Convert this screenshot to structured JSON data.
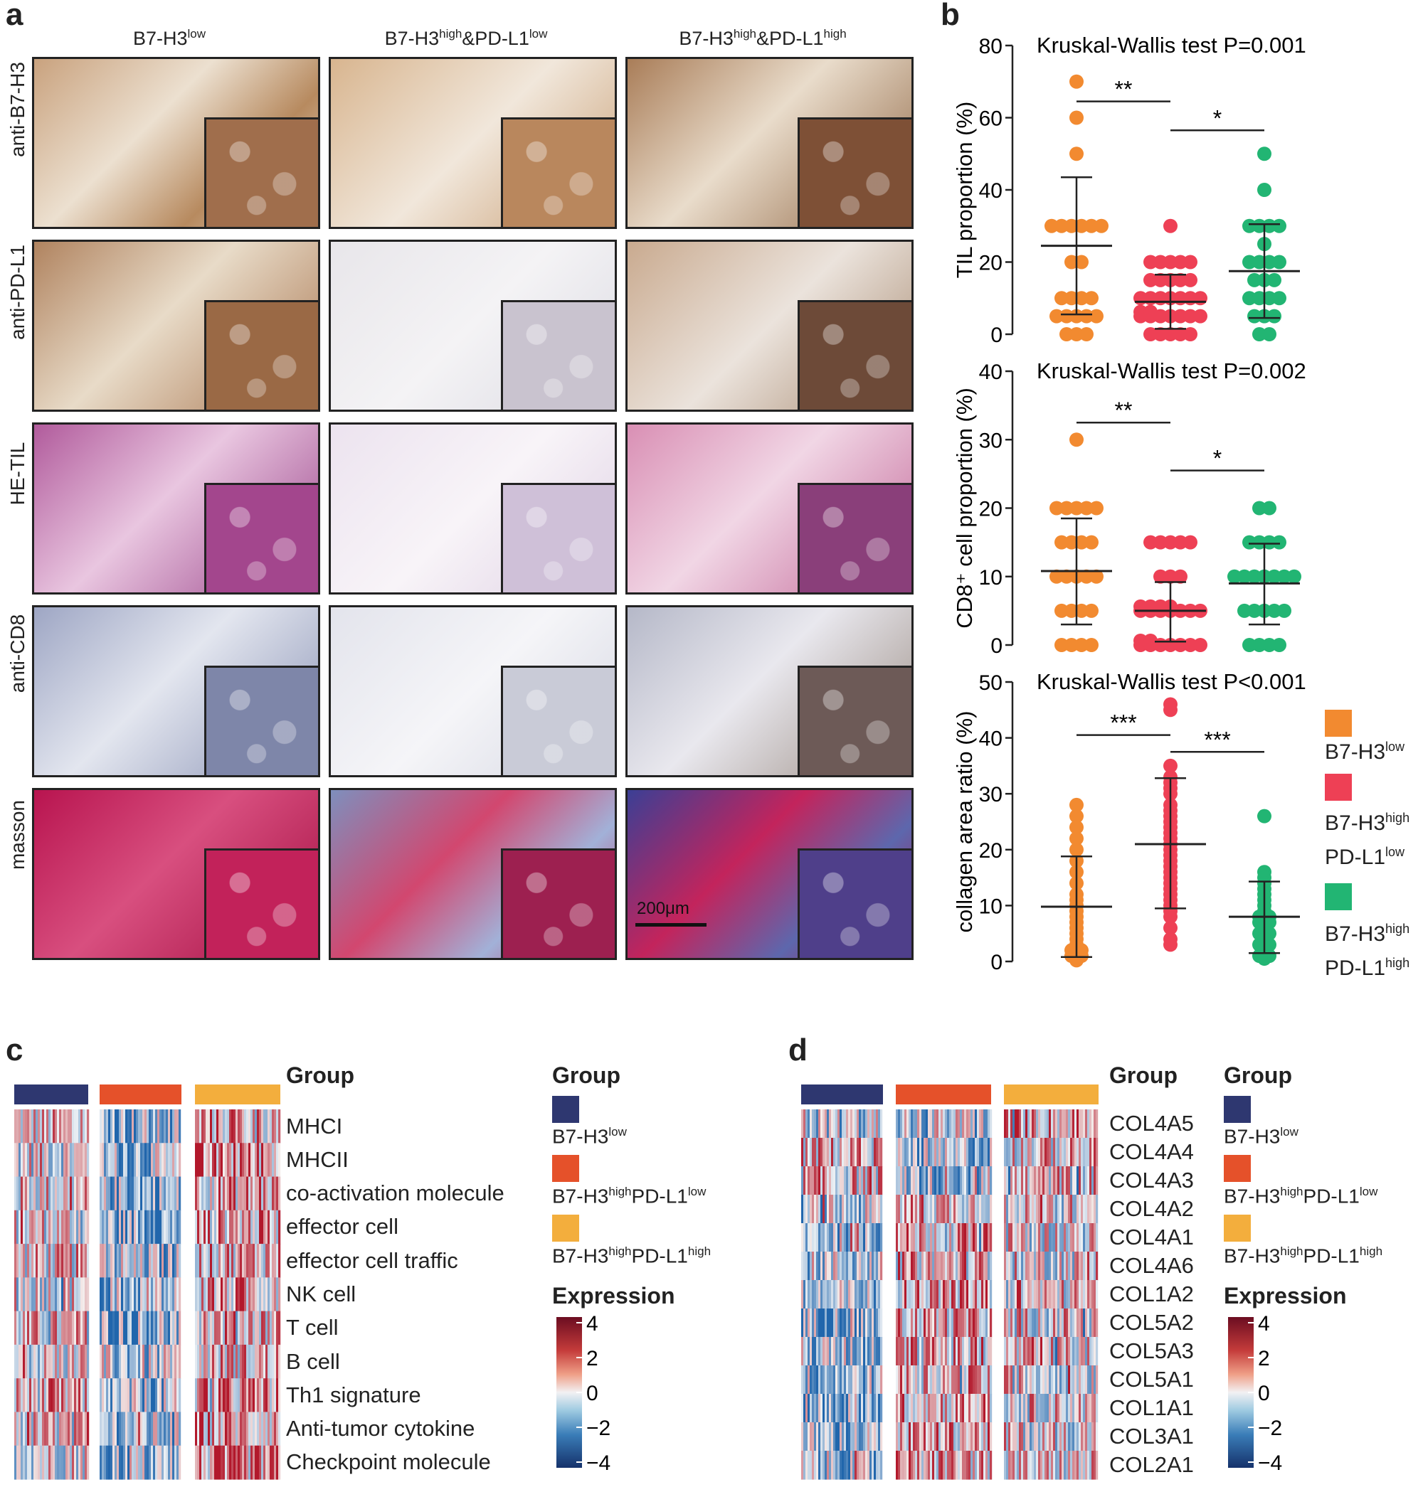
{
  "panel_a": {
    "label": "a",
    "columns": [
      "B7-H3",
      "B7-H3",
      "B7-H3"
    ],
    "column_sups": [
      "low",
      "high",
      "high"
    ],
    "column_rest": [
      "",
      "&PD-L1",
      "&PD-L1"
    ],
    "column_sups2": [
      "",
      "low",
      "high"
    ],
    "rows": [
      "anti-B7-H3",
      "anti-PD-L1",
      "HE-TIL",
      "anti-CD8",
      "masson"
    ],
    "scale_bar": "200μm"
  },
  "panel_b": {
    "label": "b"
  },
  "panel_c": {
    "label": "c"
  },
  "panel_d": {
    "label": "d"
  },
  "colors": {
    "orange": "#F28A30",
    "red": "#EE4055",
    "green": "#22B573",
    "navy": "#2E3770",
    "hm_red": "#E5512A",
    "hm_yellow": "#F3AE3D"
  },
  "legend_b": {
    "items": [
      {
        "main": "B7-H3",
        "sup": "low",
        "line2": "",
        "sup2": ""
      },
      {
        "main": "B7-H3",
        "sup": "high",
        "line2": "PD-L1",
        "sup2": "low"
      },
      {
        "main": "B7-H3",
        "sup": "high",
        "line2": "PD-L1",
        "sup2": "high"
      }
    ]
  },
  "chart_data": [
    {
      "type": "scatter",
      "title": "Kruskal-Wallis test P=0.001",
      "ylabel": "TIL proportion (%)",
      "ylim": [
        0,
        80
      ],
      "yticks": [
        0,
        20,
        40,
        60,
        80
      ],
      "groups": [
        "B7-H3low",
        "B7-H3highPD-L1low",
        "B7-H3highPD-L1high"
      ],
      "series": [
        {
          "values": [
            70,
            60,
            50,
            30,
            30,
            30,
            30,
            30,
            30,
            20,
            20,
            10,
            10,
            10,
            10,
            5,
            5,
            5,
            5,
            5,
            0,
            0,
            0
          ],
          "mean": 24.5,
          "sd_low": 5.5,
          "sd_high": 43.5
        },
        {
          "values": [
            30,
            20,
            20,
            20,
            20,
            20,
            15,
            15,
            15,
            15,
            15,
            10,
            10,
            10,
            10,
            10,
            10,
            10,
            5,
            5,
            5,
            5,
            5,
            5,
            5,
            5,
            5,
            0,
            0,
            0,
            0,
            0
          ],
          "mean": 9,
          "sd_low": 1.5,
          "sd_high": 16.5
        },
        {
          "values": [
            50,
            40,
            30,
            30,
            30,
            30,
            25,
            20,
            20,
            20,
            20,
            15,
            15,
            15,
            10,
            10,
            10,
            10,
            5,
            5,
            5,
            0,
            0
          ],
          "mean": 17.5,
          "sd_low": 4.5,
          "sd_high": 30.5
        }
      ],
      "significance": [
        {
          "pair": [
            0,
            1
          ],
          "label": "**",
          "y": 64.5
        },
        {
          "pair": [
            1,
            2
          ],
          "label": "*",
          "y": 56.5
        }
      ]
    },
    {
      "type": "scatter",
      "title": "Kruskal-Wallis test P=0.002",
      "ylabel": "CD8⁺ cell proportion (%)",
      "ylim": [
        0,
        40
      ],
      "yticks": [
        0,
        10,
        20,
        30,
        40
      ],
      "groups": [
        "B7-H3low",
        "B7-H3highPD-L1low",
        "B7-H3highPD-L1high"
      ],
      "series": [
        {
          "values": [
            30,
            20,
            20,
            20,
            20,
            20,
            15,
            15,
            15,
            15,
            10,
            10,
            10,
            10,
            10,
            5,
            5,
            5,
            5,
            0,
            0,
            0,
            0
          ],
          "mean": 10.8,
          "sd_low": 3,
          "sd_high": 18.5
        },
        {
          "values": [
            15,
            15,
            15,
            15,
            15,
            10,
            10,
            10,
            5,
            5,
            5,
            5,
            5,
            5,
            5,
            5,
            5,
            5,
            5,
            0,
            0,
            0,
            0,
            0,
            0,
            0,
            0,
            0
          ],
          "mean": 5,
          "sd_low": 0.5,
          "sd_high": 9.2
        },
        {
          "values": [
            20,
            20,
            15,
            15,
            15,
            15,
            10,
            10,
            10,
            10,
            10,
            10,
            10,
            5,
            5,
            5,
            5,
            5,
            0,
            0,
            0,
            0
          ],
          "mean": 9,
          "sd_low": 3,
          "sd_high": 14.8
        }
      ],
      "significance": [
        {
          "pair": [
            0,
            1
          ],
          "label": "**",
          "y": 32.5
        },
        {
          "pair": [
            1,
            2
          ],
          "label": "*",
          "y": 25.5
        }
      ]
    },
    {
      "type": "scatter",
      "title": "Kruskal-Wallis test P<0.001",
      "ylabel": "collagen area ratio (%)",
      "ylim": [
        0,
        50
      ],
      "yticks": [
        0,
        10,
        20,
        30,
        40,
        50
      ],
      "groups": [
        "B7-H3low",
        "B7-H3highPD-L1low",
        "B7-H3highPD-L1high"
      ],
      "series": [
        {
          "values": [
            28,
            26,
            24,
            22,
            20,
            18,
            16,
            14,
            12,
            11,
            10,
            9,
            8,
            7,
            6,
            5,
            4,
            3,
            2,
            2,
            1,
            1,
            0.5,
            0.3,
            0.2
          ],
          "mean": 9.8,
          "sd_low": 0.8,
          "sd_high": 18.8
        },
        {
          "values": [
            46,
            45,
            35,
            33,
            32,
            31,
            30,
            28,
            27,
            26,
            25,
            24,
            23,
            22,
            21,
            20,
            19,
            18,
            17,
            16,
            15,
            14,
            13,
            12,
            11,
            10,
            9,
            8,
            6,
            4,
            3
          ],
          "mean": 21,
          "sd_low": 9.5,
          "sd_high": 32.8
        },
        {
          "values": [
            26,
            16,
            15,
            14,
            13,
            12,
            11,
            10,
            9,
            8,
            8,
            7,
            7,
            6,
            5,
            5,
            4,
            3,
            3,
            2,
            1,
            1,
            0.5
          ],
          "mean": 8,
          "sd_low": 1.5,
          "sd_high": 14.3
        }
      ],
      "significance": [
        {
          "pair": [
            0,
            1
          ],
          "label": "***",
          "y": 40.5
        },
        {
          "pair": [
            1,
            2
          ],
          "label": "***",
          "y": 37.5
        }
      ]
    },
    {
      "type": "heatmap",
      "rows": [
        "MHCI",
        "MHCII",
        "co-activation molecule",
        "effector cell",
        "effector cell traffic",
        "NK cell",
        "T cell",
        "B cell",
        "Th1 signature",
        "Anti-tumor cytokine",
        "Checkpoint molecule"
      ],
      "group_label": "Group",
      "legend_title": "Group",
      "legend": [
        {
          "main": "B7-H3",
          "sup": "low",
          "mid": "",
          "sup2": ""
        },
        {
          "main": "B7-H3",
          "sup": "high",
          "mid": "PD-L1",
          "sup2": "low"
        },
        {
          "main": "B7-H3",
          "sup": "high",
          "mid": "PD-L1",
          "sup2": "high"
        }
      ],
      "expression_title": "Expression",
      "scale": [
        "4",
        "2",
        "0",
        "−2",
        "−4"
      ]
    },
    {
      "type": "heatmap",
      "rows": [
        "COL4A5",
        "COL4A4",
        "COL4A3",
        "COL4A2",
        "COL4A1",
        "COL4A6",
        "COL1A2",
        "COL5A2",
        "COL5A3",
        "COL5A1",
        "COL1A1",
        "COL3A1",
        "COL2A1"
      ],
      "group_label": "Group",
      "legend_title": "Group",
      "legend": [
        {
          "main": "B7-H3",
          "sup": "low",
          "mid": "",
          "sup2": ""
        },
        {
          "main": "B7-H3",
          "sup": "high",
          "mid": "PD-L1",
          "sup2": "low"
        },
        {
          "main": "B7-H3",
          "sup": "high",
          "mid": "PD-L1",
          "sup2": "high"
        }
      ],
      "expression_title": "Expression",
      "scale": [
        "4",
        "2",
        "0",
        "−2",
        "−4"
      ]
    }
  ]
}
